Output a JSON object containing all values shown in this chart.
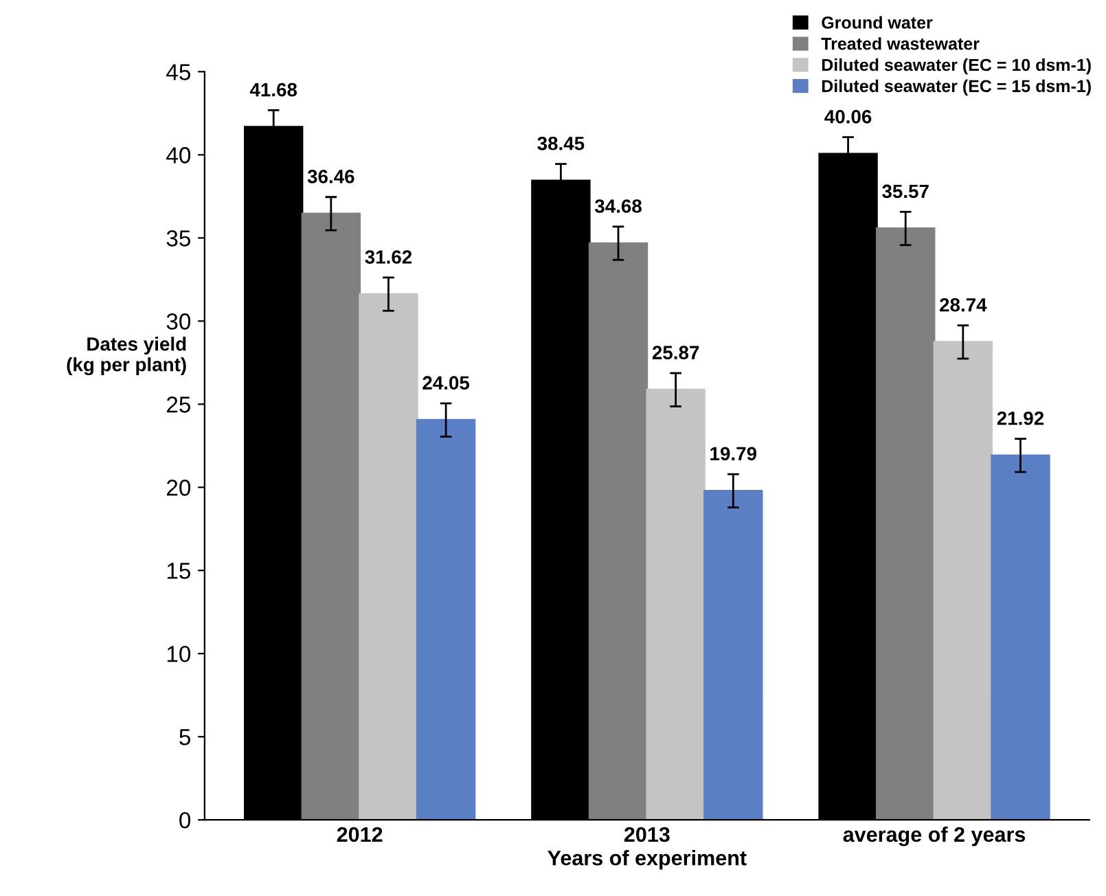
{
  "chart_data": {
    "type": "bar",
    "xlabel": "Years of experiment",
    "ylabel": "Dates yield\n(kg per plant)",
    "categories": [
      "2012",
      "2013",
      "average of 2 years"
    ],
    "series": [
      {
        "name": "Ground water",
        "color": "#000000",
        "values": [
          41.68,
          38.45,
          40.06
        ],
        "errors": [
          1,
          1,
          1
        ]
      },
      {
        "name": "Treated wastewater",
        "color": "#808080",
        "values": [
          36.46,
          34.68,
          35.57
        ],
        "errors": [
          1,
          1,
          1
        ]
      },
      {
        "name": "Diluted seawater (EC = 10 dsm-1)",
        "color": "#c4c4c4",
        "values": [
          31.62,
          25.87,
          28.74
        ],
        "errors": [
          1,
          1,
          1
        ]
      },
      {
        "name": "Diluted seawater (EC = 15 dsm-1)",
        "color": "#5b7fc4",
        "values": [
          24.05,
          19.79,
          21.92
        ],
        "errors": [
          1,
          1,
          1
        ]
      }
    ],
    "ylim": [
      0,
      45
    ],
    "yticks": [
      0,
      5,
      10,
      15,
      20,
      25,
      30,
      35,
      40,
      45
    ],
    "data_labels": true,
    "grid": false,
    "legend": "top right"
  }
}
